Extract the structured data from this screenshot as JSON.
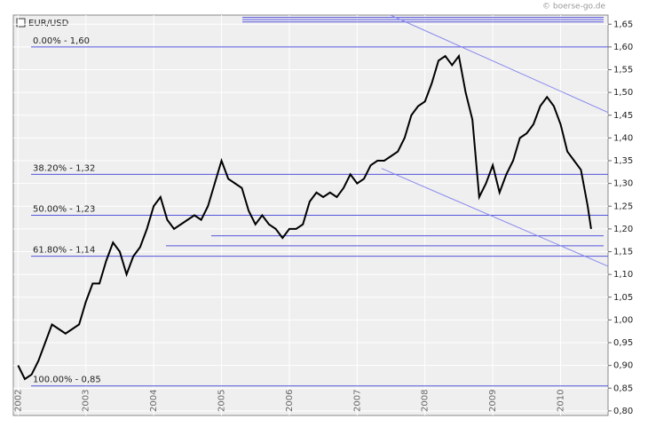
{
  "chart_data": {
    "type": "line",
    "title": "EUR/USD",
    "watermark": "© boerse-go.de",
    "x": [
      2002.0,
      2002.1,
      2002.2,
      2002.3,
      2002.4,
      2002.5,
      2002.6,
      2002.7,
      2002.8,
      2002.9,
      2003.0,
      2003.1,
      2003.2,
      2003.3,
      2003.4,
      2003.5,
      2003.6,
      2003.7,
      2003.8,
      2003.9,
      2004.0,
      2004.1,
      2004.2,
      2004.3,
      2004.4,
      2004.5,
      2004.6,
      2004.7,
      2004.8,
      2004.9,
      2005.0,
      2005.1,
      2005.2,
      2005.3,
      2005.4,
      2005.5,
      2005.6,
      2005.7,
      2005.8,
      2005.9,
      2006.0,
      2006.1,
      2006.2,
      2006.3,
      2006.4,
      2006.5,
      2006.6,
      2006.7,
      2006.8,
      2006.9,
      2007.0,
      2007.1,
      2007.2,
      2007.3,
      2007.4,
      2007.5,
      2007.6,
      2007.7,
      2007.8,
      2007.9,
      2008.0,
      2008.1,
      2008.2,
      2008.3,
      2008.4,
      2008.5,
      2008.6,
      2008.7,
      2008.8,
      2008.9,
      2009.0,
      2009.1,
      2009.2,
      2009.3,
      2009.4,
      2009.5,
      2009.6,
      2009.7,
      2009.8,
      2009.9,
      2010.0,
      2010.1,
      2010.2,
      2010.3,
      2010.4,
      2010.45
    ],
    "series": [
      {
        "name": "EUR/USD",
        "color": "#000000",
        "values": [
          0.9,
          0.87,
          0.88,
          0.91,
          0.95,
          0.99,
          0.98,
          0.97,
          0.98,
          0.99,
          1.04,
          1.08,
          1.08,
          1.13,
          1.17,
          1.15,
          1.1,
          1.14,
          1.16,
          1.2,
          1.25,
          1.27,
          1.22,
          1.2,
          1.21,
          1.22,
          1.23,
          1.22,
          1.25,
          1.3,
          1.35,
          1.31,
          1.3,
          1.29,
          1.24,
          1.21,
          1.23,
          1.21,
          1.2,
          1.18,
          1.2,
          1.2,
          1.21,
          1.26,
          1.28,
          1.27,
          1.28,
          1.27,
          1.29,
          1.32,
          1.3,
          1.31,
          1.34,
          1.35,
          1.35,
          1.36,
          1.37,
          1.4,
          1.45,
          1.47,
          1.48,
          1.52,
          1.57,
          1.58,
          1.56,
          1.58,
          1.5,
          1.44,
          1.27,
          1.3,
          1.34,
          1.28,
          1.32,
          1.35,
          1.4,
          1.41,
          1.43,
          1.47,
          1.49,
          1.47,
          1.43,
          1.37,
          1.35,
          1.33,
          1.25,
          1.2
        ]
      }
    ],
    "xlim": [
      2001.93,
      2010.7
    ],
    "xticks": [
      2002,
      2003,
      2004,
      2005,
      2006,
      2007,
      2008,
      2009,
      2010
    ],
    "ylim": [
      0.79,
      1.67
    ],
    "yticks": [
      {
        "value": 0.8,
        "label": "0,80"
      },
      {
        "value": 0.85,
        "label": "0,85"
      },
      {
        "value": 0.9,
        "label": "0,90"
      },
      {
        "value": 0.95,
        "label": "0,95"
      },
      {
        "value": 1.0,
        "label": "1,00"
      },
      {
        "value": 1.05,
        "label": "1,05"
      },
      {
        "value": 1.1,
        "label": "1,10"
      },
      {
        "value": 1.15,
        "label": "1,15"
      },
      {
        "value": 1.2,
        "label": "1,20"
      },
      {
        "value": 1.25,
        "label": "1,25"
      },
      {
        "value": 1.3,
        "label": "1,30"
      },
      {
        "value": 1.35,
        "label": "1,35"
      },
      {
        "value": 1.4,
        "label": "1,40"
      },
      {
        "value": 1.45,
        "label": "1,45"
      },
      {
        "value": 1.5,
        "label": "1,50"
      },
      {
        "value": 1.55,
        "label": "1,55"
      },
      {
        "value": 1.6,
        "label": "1,60"
      },
      {
        "value": 1.65,
        "label": "1,65"
      }
    ],
    "grid": true,
    "fib_levels": [
      {
        "value": 1.6,
        "label": "0.00% - 1,60"
      },
      {
        "value": 1.32,
        "label": "38.20% - 1,32"
      },
      {
        "value": 1.23,
        "label": "50.00% - 1,23"
      },
      {
        "value": 1.14,
        "label": "61.80% - 1,14"
      },
      {
        "value": 0.855,
        "label": "100.00% - 0,85"
      }
    ],
    "level_color": "#5555dd",
    "support_levels": [
      1.185,
      1.163,
      1.655,
      1.66,
      1.665
    ],
    "trendlines": [
      {
        "x": [
          2007.49,
          2010.7
        ],
        "y": [
          1.67,
          1.456
        ]
      },
      {
        "x": [
          2007.36,
          2010.7
        ],
        "y": [
          1.333,
          1.118
        ]
      }
    ]
  }
}
